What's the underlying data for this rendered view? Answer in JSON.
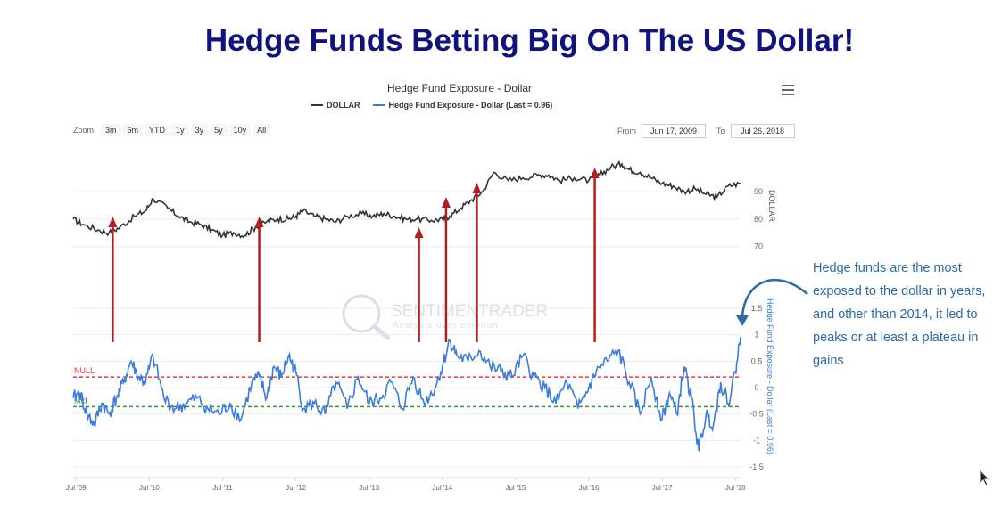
{
  "headline": "Hedge Funds Betting Big On The US Dollar!",
  "chart": {
    "title": "Hedge Fund Exposure - Dollar",
    "legend": [
      {
        "label": "DOLLAR",
        "color": "#333333"
      },
      {
        "label": "Hedge Fund Exposure - Dollar (Last = 0.96)",
        "color": "#3b7ddd"
      }
    ],
    "menu_icon": "hamburger-menu-icon"
  },
  "zoom": {
    "label": "Zoom",
    "buttons": [
      "3m",
      "6m",
      "YTD",
      "1y",
      "3y",
      "5y",
      "10y",
      "All"
    ]
  },
  "range": {
    "from_label": "From",
    "from_value": "Jun 17, 2009",
    "to_label": "To",
    "to_value": "Jul 26, 2018"
  },
  "watermark": {
    "name": "SENTIMENTRADER",
    "tagline": "Analysis over emotion"
  },
  "annotation": "Hedge funds are the most exposed to the dollar in years, and other than 2014, it led to peaks or at least a plateau in gains",
  "chart_data": {
    "type": "line",
    "x_ticks": [
      "Jul '09",
      "Jul '10",
      "Jul '11",
      "Jul '12",
      "Jul '13",
      "Jul '14",
      "Jul '15",
      "Jul '16",
      "Jul '17",
      "Jul '18"
    ],
    "x_range": [
      2009.46,
      2018.57
    ],
    "top_panel": {
      "ylabel": "DOLLAR",
      "ylim": [
        65,
        102
      ],
      "yticks": [
        "70",
        "80",
        "90"
      ],
      "series": [
        {
          "name": "DOLLAR",
          "color": "#333333",
          "x": [
            2009.46,
            2009.6,
            2009.8,
            2009.95,
            2010.1,
            2010.3,
            2010.45,
            2010.55,
            2010.75,
            2010.9,
            2011.05,
            2011.2,
            2011.35,
            2011.5,
            2011.65,
            2011.8,
            2011.95,
            2012.1,
            2012.25,
            2012.4,
            2012.5,
            2012.6,
            2012.75,
            2012.9,
            2013.05,
            2013.2,
            2013.4,
            2013.55,
            2013.7,
            2013.85,
            2014.0,
            2014.15,
            2014.35,
            2014.5,
            2014.6,
            2014.75,
            2014.9,
            2015.05,
            2015.2,
            2015.4,
            2015.6,
            2015.8,
            2015.95,
            2016.1,
            2016.3,
            2016.5,
            2016.65,
            2016.8,
            2016.95,
            2017.05,
            2017.2,
            2017.35,
            2017.5,
            2017.65,
            2017.8,
            2017.95,
            2018.1,
            2018.25,
            2018.4,
            2018.57
          ],
          "values": [
            80,
            78,
            76,
            75,
            77,
            81,
            83,
            87.5,
            84,
            81,
            79,
            78,
            76,
            74,
            75,
            74,
            77,
            79,
            80,
            80,
            81,
            83,
            81,
            80,
            79,
            81,
            82,
            81,
            82,
            81,
            80,
            80,
            79.5,
            80,
            81,
            84,
            87,
            90,
            97,
            94,
            95,
            96,
            96,
            94,
            95,
            94,
            96,
            99,
            100,
            98,
            97,
            95,
            93,
            92,
            90,
            91,
            89,
            88,
            92,
            93
          ]
        }
      ]
    },
    "bottom_panel": {
      "ylabel": "Hedge Fund Exposure - Dollar (Last = 0.96)",
      "ylim": [
        -1.6,
        1.6
      ],
      "yticks": [
        "1.5",
        "1",
        "0.5",
        "0",
        "-0.5",
        "-1",
        "-1.5"
      ],
      "reference_lines": [
        {
          "label": "NULL",
          "value": 0.2,
          "color": "#e53935"
        },
        {
          "label": "Mid",
          "value": -0.36,
          "color": "#2e9a2e"
        }
      ],
      "series": [
        {
          "name": "Hedge Fund Exposure - Dollar",
          "color": "#3b7ddd",
          "x": [
            2009.46,
            2009.55,
            2009.65,
            2009.75,
            2009.85,
            2009.95,
            2010.05,
            2010.15,
            2010.25,
            2010.35,
            2010.45,
            2010.55,
            2010.7,
            2010.85,
            2011.0,
            2011.15,
            2011.3,
            2011.45,
            2011.6,
            2011.75,
            2011.9,
            2012.0,
            2012.1,
            2012.2,
            2012.3,
            2012.4,
            2012.5,
            2012.6,
            2012.75,
            2012.9,
            2013.05,
            2013.2,
            2013.35,
            2013.5,
            2013.65,
            2013.8,
            2013.95,
            2014.1,
            2014.25,
            2014.4,
            2014.5,
            2014.6,
            2014.7,
            2014.85,
            2015.0,
            2015.15,
            2015.3,
            2015.45,
            2015.6,
            2015.75,
            2015.9,
            2016.05,
            2016.2,
            2016.35,
            2016.5,
            2016.6,
            2016.75,
            2016.9,
            2017.05,
            2017.2,
            2017.35,
            2017.5,
            2017.6,
            2017.7,
            2017.8,
            2017.9,
            2018.0,
            2018.1,
            2018.2,
            2018.3,
            2018.4,
            2018.5,
            2018.57
          ],
          "values": [
            -0.2,
            -0.1,
            -0.5,
            -0.7,
            -0.3,
            -0.5,
            -0.2,
            0.1,
            0.5,
            0.2,
            0.1,
            0.6,
            -0.2,
            -0.4,
            -0.3,
            -0.2,
            -0.4,
            -0.5,
            -0.3,
            -0.6,
            0.1,
            0.2,
            -0.2,
            0.4,
            0.2,
            0.6,
            0.3,
            -0.4,
            -0.3,
            -0.5,
            0.1,
            -0.4,
            0.2,
            -0.3,
            -0.2,
            0.1,
            -0.4,
            0.2,
            -0.3,
            0.0,
            0.4,
            0.9,
            0.6,
            0.5,
            0.7,
            0.4,
            0.3,
            0.2,
            0.6,
            0.2,
            0.0,
            -0.3,
            0.1,
            -0.4,
            0.0,
            0.3,
            0.5,
            0.7,
            0.1,
            -0.5,
            0.2,
            -0.6,
            -0.1,
            -0.5,
            0.4,
            -0.2,
            -1.2,
            -0.5,
            -0.7,
            0.1,
            -0.3,
            0.3,
            0.96
          ]
        }
      ]
    },
    "arrows_at": [
      2010.0,
      2012.0,
      2014.18,
      2014.55,
      2014.97,
      2016.58
    ]
  }
}
